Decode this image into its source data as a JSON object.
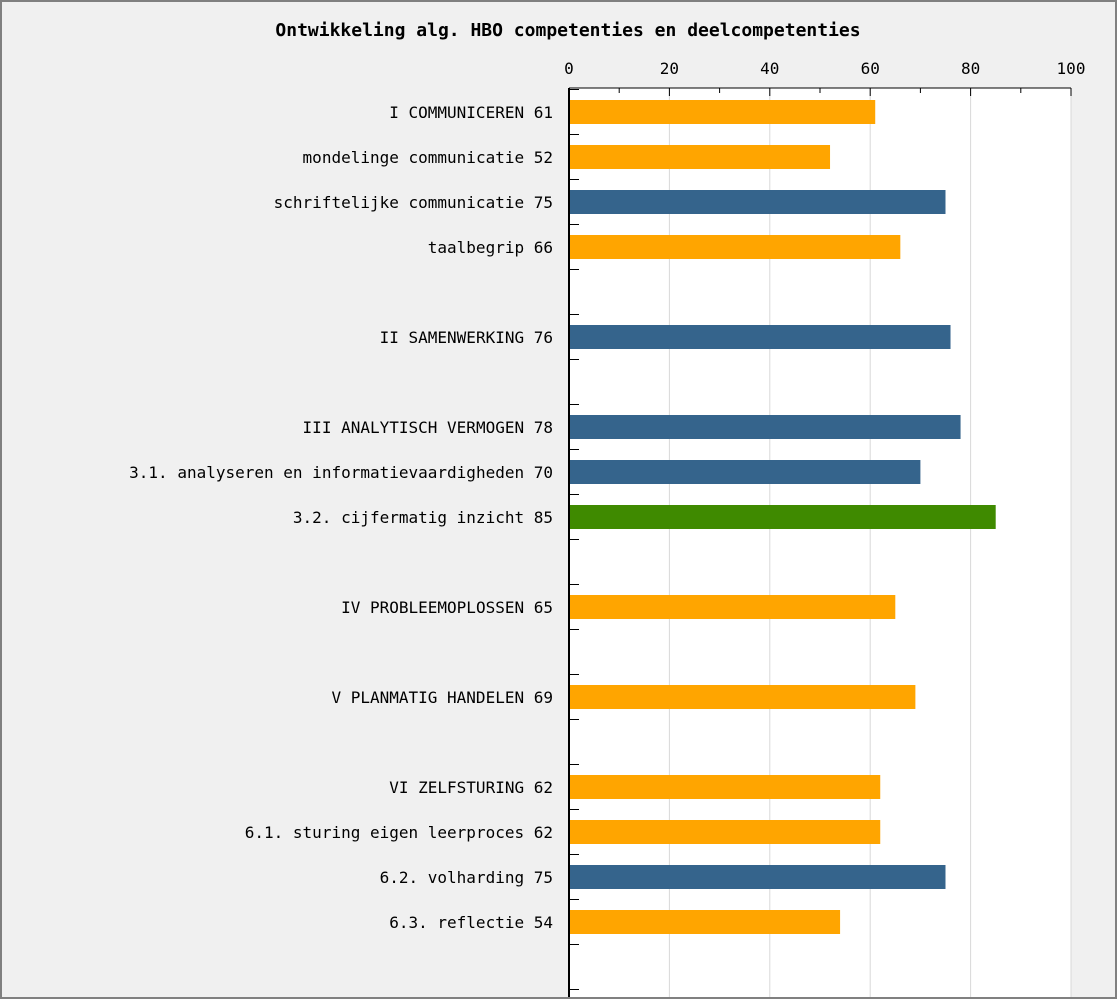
{
  "chart_data": {
    "type": "bar",
    "orientation": "horizontal",
    "title": "Ontwikkeling alg. HBO competenties en deelcompetenties",
    "xlim": [
      0,
      100
    ],
    "x_ticks": [
      0,
      20,
      40,
      60,
      80,
      100
    ],
    "x_tick_labels": [
      "0",
      "20",
      "40",
      "60",
      "80",
      "100"
    ],
    "grid": true,
    "colors": {
      "orange": "#ffa500",
      "blue": "#35648c",
      "green": "#3f8a00",
      "panel": "#f0f0f0",
      "gridline": "#d8d8d8"
    },
    "rows": [
      {
        "label": "I COMMUNICEREN 61",
        "value": 61,
        "color": "orange"
      },
      {
        "label": "mondelinge communicatie 52",
        "value": 52,
        "color": "orange"
      },
      {
        "label": "schriftelijke communicatie 75",
        "value": 75,
        "color": "blue"
      },
      {
        "label": "taalbegrip 66",
        "value": 66,
        "color": "orange"
      },
      {
        "label": "",
        "value": null,
        "color": null
      },
      {
        "label": "II SAMENWERKING 76",
        "value": 76,
        "color": "blue"
      },
      {
        "label": "",
        "value": null,
        "color": null
      },
      {
        "label": "III ANALYTISCH VERMOGEN 78",
        "value": 78,
        "color": "blue"
      },
      {
        "label": "3.1. analyseren en informatievaardigheden 70",
        "value": 70,
        "color": "blue"
      },
      {
        "label": "3.2. cijfermatig inzicht 85",
        "value": 85,
        "color": "green"
      },
      {
        "label": "",
        "value": null,
        "color": null
      },
      {
        "label": "IV PROBLEEMOPLOSSEN 65",
        "value": 65,
        "color": "orange"
      },
      {
        "label": "",
        "value": null,
        "color": null
      },
      {
        "label": "V PLANMATIG HANDELEN 69",
        "value": 69,
        "color": "orange"
      },
      {
        "label": "",
        "value": null,
        "color": null
      },
      {
        "label": "VI ZELFSTURING 62",
        "value": 62,
        "color": "orange"
      },
      {
        "label": "6.1. sturing eigen leerproces 62",
        "value": 62,
        "color": "orange"
      },
      {
        "label": "6.2. volharding 75",
        "value": 75,
        "color": "blue"
      },
      {
        "label": "6.3. reflectie 54",
        "value": 54,
        "color": "orange"
      },
      {
        "label": "",
        "value": null,
        "color": null
      }
    ]
  }
}
